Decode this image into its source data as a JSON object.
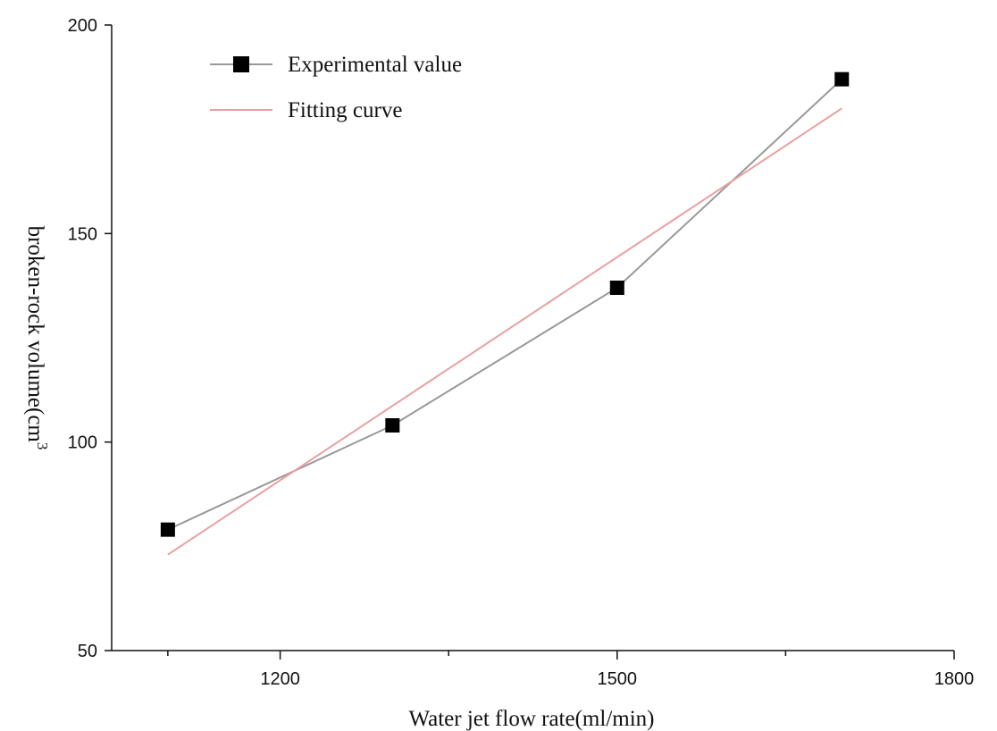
{
  "chart_data": {
    "type": "line",
    "title": "",
    "xlabel": "Water jet flow rate(ml/min)",
    "ylabel": "broken-rock volume(cm",
    "ylabel_superscript": "3",
    "xlim": [
      1050,
      1800
    ],
    "ylim": [
      50,
      200
    ],
    "x_ticks": [
      1200,
      1500,
      1800
    ],
    "x_minor_ticks": [
      1100,
      1350,
      1650
    ],
    "y_ticks": [
      50,
      100,
      150,
      200
    ],
    "grid": false,
    "legend_position": "top-left",
    "series": [
      {
        "name": "Experimental value",
        "marker": "square",
        "color": "#999999",
        "marker_color": "#000000",
        "x": [
          1100,
          1300,
          1500,
          1700
        ],
        "y": [
          79,
          104,
          137,
          187
        ]
      },
      {
        "name": "Fitting curve",
        "marker": "none",
        "color": "#e8a0a0",
        "x": [
          1100,
          1700
        ],
        "y": [
          73,
          180
        ]
      }
    ]
  }
}
